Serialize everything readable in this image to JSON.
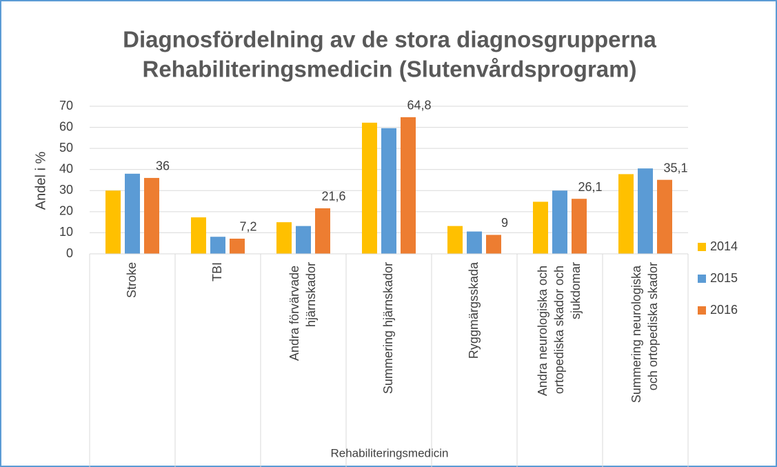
{
  "chart_data": {
    "type": "bar",
    "title": [
      "Diagnosfördelning av de stora diagnosgrupperna",
      "Rehabiliteringsmedicin (Slutenvårdsprogram)"
    ],
    "y_axis_label": "Andel i %",
    "x_axis_label": "Rehabiliteringsmedicin",
    "categories": [
      "Stroke",
      "TBI",
      "Andra förvärvade hjärnskador",
      "Summering hjärnskador",
      "Ryggmärgsskada",
      "Andra neurologiska och ortopediska skador och sjukdomar",
      "Summering neurologiska och ortopediska skador"
    ],
    "series": [
      {
        "name": "2014",
        "color": "#ffc000",
        "values": [
          30,
          17.3,
          15,
          62.2,
          13.2,
          24.7,
          37.8
        ]
      },
      {
        "name": "2015",
        "color": "#5b9bd5",
        "values": [
          38,
          8.1,
          13.2,
          59.6,
          10.6,
          30,
          40.5
        ]
      },
      {
        "name": "2016",
        "color": "#ed7d31",
        "values": [
          36,
          7.2,
          21.6,
          64.8,
          9,
          26.1,
          35.1
        ],
        "value_labels": [
          "36",
          "7,2",
          "21,6",
          "64,8",
          "9",
          "26,1",
          "35,1"
        ]
      }
    ],
    "ylim": [
      0,
      70
    ],
    "yticks": [
      0,
      10,
      20,
      30,
      40,
      50,
      60,
      70
    ],
    "grid": true,
    "legend": "right"
  }
}
